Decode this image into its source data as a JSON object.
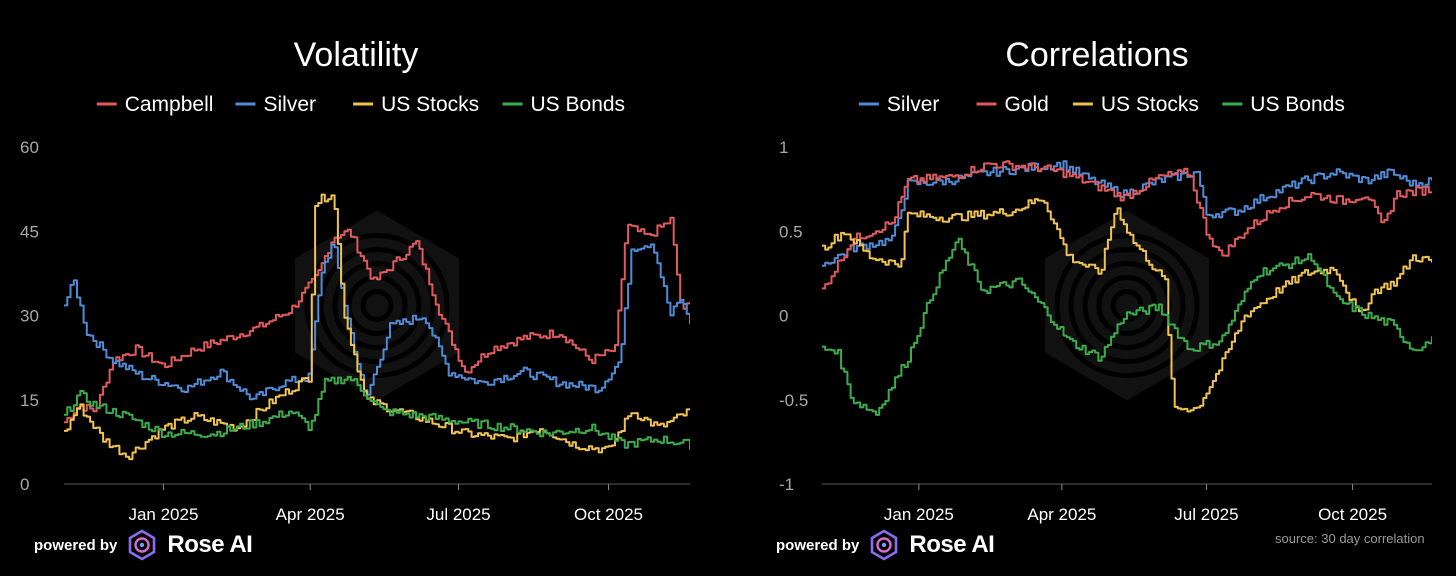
{
  "chart_data": [
    {
      "type": "line",
      "title": "Volatility",
      "xlabel": "",
      "ylabel": "",
      "x_start": "2024-11-01",
      "x_end": "2025-11-20",
      "ylim": [
        0,
        60
      ],
      "yticks": [
        0,
        15,
        30,
        45,
        60
      ],
      "ytick_labels": [
        "0",
        "15",
        "30",
        "45",
        "60"
      ],
      "xticks": [
        {
          "date": "2025-01-01",
          "label": "Jan 2025"
        },
        {
          "date": "2025-04-01",
          "label": "Apr 2025"
        },
        {
          "date": "2025-07-01",
          "label": "Jul 2025"
        },
        {
          "date": "2025-10-01",
          "label": "Oct 2025"
        }
      ],
      "legend_position": "top-center",
      "series": [
        {
          "name": "Campbell",
          "color": "#e05a5e",
          "points": [
            [
              "2024-11-01",
              11
            ],
            [
              "2024-11-10",
              14
            ],
            [
              "2024-11-20",
              13
            ],
            [
              "2024-12-01",
              22
            ],
            [
              "2024-12-15",
              24
            ],
            [
              "2025-01-01",
              21
            ],
            [
              "2025-01-20",
              24
            ],
            [
              "2025-02-10",
              26
            ],
            [
              "2025-03-01",
              28
            ],
            [
              "2025-03-20",
              31
            ],
            [
              "2025-04-05",
              37
            ],
            [
              "2025-04-15",
              44
            ],
            [
              "2025-04-25",
              45
            ],
            [
              "2025-05-10",
              36
            ],
            [
              "2025-05-25",
              40
            ],
            [
              "2025-06-05",
              43
            ],
            [
              "2025-06-20",
              30
            ],
            [
              "2025-07-05",
              20
            ],
            [
              "2025-07-20",
              24
            ],
            [
              "2025-08-10",
              26
            ],
            [
              "2025-09-01",
              27
            ],
            [
              "2025-09-20",
              22
            ],
            [
              "2025-10-05",
              24
            ],
            [
              "2025-10-12",
              46
            ],
            [
              "2025-10-25",
              44
            ],
            [
              "2025-11-08",
              47
            ],
            [
              "2025-11-15",
              30
            ],
            [
              "2025-11-20",
              33
            ]
          ]
        },
        {
          "name": "Silver",
          "color": "#4f8bd6",
          "points": [
            [
              "2024-11-01",
              32
            ],
            [
              "2024-11-07",
              36
            ],
            [
              "2024-11-15",
              27
            ],
            [
              "2024-12-01",
              22
            ],
            [
              "2024-12-20",
              19
            ],
            [
              "2025-01-15",
              17
            ],
            [
              "2025-02-05",
              20
            ],
            [
              "2025-02-25",
              15
            ],
            [
              "2025-03-15",
              18
            ],
            [
              "2025-03-31",
              19
            ],
            [
              "2025-04-08",
              38
            ],
            [
              "2025-04-15",
              43
            ],
            [
              "2025-04-22",
              32
            ],
            [
              "2025-05-05",
              15
            ],
            [
              "2025-05-20",
              28
            ],
            [
              "2025-06-10",
              30
            ],
            [
              "2025-06-25",
              20
            ],
            [
              "2025-07-15",
              18
            ],
            [
              "2025-08-10",
              20
            ],
            [
              "2025-09-01",
              18
            ],
            [
              "2025-09-25",
              17
            ],
            [
              "2025-10-08",
              22
            ],
            [
              "2025-10-15",
              42
            ],
            [
              "2025-10-28",
              43
            ],
            [
              "2025-11-08",
              30
            ],
            [
              "2025-11-14",
              33
            ],
            [
              "2025-11-20",
              29
            ]
          ]
        },
        {
          "name": "US Stocks",
          "color": "#f0c24f",
          "points": [
            [
              "2024-11-01",
              9
            ],
            [
              "2024-11-10",
              14
            ],
            [
              "2024-11-25",
              8
            ],
            [
              "2024-12-10",
              5
            ],
            [
              "2025-01-01",
              10
            ],
            [
              "2025-01-20",
              12
            ],
            [
              "2025-02-15",
              10
            ],
            [
              "2025-03-10",
              15
            ],
            [
              "2025-03-31",
              19
            ],
            [
              "2025-04-04",
              50
            ],
            [
              "2025-04-15",
              52
            ],
            [
              "2025-04-22",
              30
            ],
            [
              "2025-05-05",
              15
            ],
            [
              "2025-05-25",
              13
            ],
            [
              "2025-06-15",
              11
            ],
            [
              "2025-07-05",
              9
            ],
            [
              "2025-08-01",
              8
            ],
            [
              "2025-08-20",
              10
            ],
            [
              "2025-09-10",
              7
            ],
            [
              "2025-10-01",
              6
            ],
            [
              "2025-10-15",
              13
            ],
            [
              "2025-11-01",
              10
            ],
            [
              "2025-11-20",
              13
            ]
          ]
        },
        {
          "name": "US Bonds",
          "color": "#3cab4d",
          "points": [
            [
              "2024-11-01",
              12
            ],
            [
              "2024-11-10",
              16
            ],
            [
              "2024-11-20",
              14
            ],
            [
              "2024-12-10",
              12
            ],
            [
              "2025-01-01",
              9
            ],
            [
              "2025-02-01",
              9
            ],
            [
              "2025-03-01",
              11
            ],
            [
              "2025-03-20",
              13
            ],
            [
              "2025-04-01",
              10
            ],
            [
              "2025-04-10",
              18
            ],
            [
              "2025-04-25",
              19
            ],
            [
              "2025-05-15",
              13
            ],
            [
              "2025-06-10",
              12
            ],
            [
              "2025-07-05",
              11
            ],
            [
              "2025-08-01",
              10
            ],
            [
              "2025-08-25",
              9
            ],
            [
              "2025-09-20",
              10
            ],
            [
              "2025-10-10",
              7
            ],
            [
              "2025-11-01",
              8
            ],
            [
              "2025-11-20",
              7
            ]
          ]
        }
      ]
    },
    {
      "type": "line",
      "title": "Correlations",
      "xlabel": "",
      "ylabel": "",
      "x_start": "2024-11-01",
      "x_end": "2025-11-20",
      "ylim": [
        -1,
        1
      ],
      "yticks": [
        -1,
        -0.5,
        0,
        0.5,
        1
      ],
      "ytick_labels": [
        "-1",
        "-0.5",
        "0",
        "0.5",
        "1"
      ],
      "xticks": [
        {
          "date": "2025-01-01",
          "label": "Jan 2025"
        },
        {
          "date": "2025-04-01",
          "label": "Apr 2025"
        },
        {
          "date": "2025-07-01",
          "label": "Jul 2025"
        },
        {
          "date": "2025-10-01",
          "label": "Oct 2025"
        }
      ],
      "legend_position": "top-center",
      "series": [
        {
          "name": "Silver",
          "color": "#4f8bd6",
          "points": [
            [
              "2024-11-01",
              0.3
            ],
            [
              "2024-11-20",
              0.4
            ],
            [
              "2024-12-15",
              0.45
            ],
            [
              "2024-12-25",
              0.78
            ],
            [
              "2025-01-20",
              0.8
            ],
            [
              "2025-02-15",
              0.85
            ],
            [
              "2025-03-15",
              0.88
            ],
            [
              "2025-04-01",
              0.9
            ],
            [
              "2025-04-20",
              0.8
            ],
            [
              "2025-05-10",
              0.72
            ],
            [
              "2025-06-01",
              0.8
            ],
            [
              "2025-06-25",
              0.85
            ],
            [
              "2025-07-01",
              0.6
            ],
            [
              "2025-07-20",
              0.62
            ],
            [
              "2025-08-10",
              0.72
            ],
            [
              "2025-09-01",
              0.8
            ],
            [
              "2025-09-20",
              0.85
            ],
            [
              "2025-10-10",
              0.8
            ],
            [
              "2025-10-25",
              0.85
            ],
            [
              "2025-11-08",
              0.78
            ],
            [
              "2025-11-20",
              0.8
            ]
          ]
        },
        {
          "name": "Gold",
          "color": "#e05a5e",
          "points": [
            [
              "2024-11-01",
              0.15
            ],
            [
              "2024-11-20",
              0.45
            ],
            [
              "2024-12-15",
              0.55
            ],
            [
              "2024-12-25",
              0.8
            ],
            [
              "2025-01-20",
              0.82
            ],
            [
              "2025-02-15",
              0.9
            ],
            [
              "2025-03-15",
              0.88
            ],
            [
              "2025-04-01",
              0.85
            ],
            [
              "2025-04-20",
              0.78
            ],
            [
              "2025-05-10",
              0.7
            ],
            [
              "2025-06-01",
              0.82
            ],
            [
              "2025-06-20",
              0.85
            ],
            [
              "2025-07-01",
              0.5
            ],
            [
              "2025-07-10",
              0.35
            ],
            [
              "2025-07-25",
              0.5
            ],
            [
              "2025-08-15",
              0.65
            ],
            [
              "2025-09-05",
              0.72
            ],
            [
              "2025-09-25",
              0.68
            ],
            [
              "2025-10-10",
              0.72
            ],
            [
              "2025-10-20",
              0.52
            ],
            [
              "2025-10-28",
              0.72
            ],
            [
              "2025-11-20",
              0.75
            ]
          ]
        },
        {
          "name": "US Stocks",
          "color": "#f0c24f",
          "points": [
            [
              "2024-11-01",
              0.4
            ],
            [
              "2024-11-15",
              0.5
            ],
            [
              "2024-12-01",
              0.35
            ],
            [
              "2024-12-20",
              0.3
            ],
            [
              "2024-12-25",
              0.6
            ],
            [
              "2025-01-20",
              0.58
            ],
            [
              "2025-02-10",
              0.6
            ],
            [
              "2025-03-01",
              0.62
            ],
            [
              "2025-03-20",
              0.7
            ],
            [
              "2025-04-05",
              0.35
            ],
            [
              "2025-04-25",
              0.25
            ],
            [
              "2025-05-05",
              0.65
            ],
            [
              "2025-05-15",
              0.45
            ],
            [
              "2025-06-05",
              0.2
            ],
            [
              "2025-06-10",
              -0.55
            ],
            [
              "2025-06-25",
              -0.55
            ],
            [
              "2025-07-10",
              -0.3
            ],
            [
              "2025-07-25",
              0.0
            ],
            [
              "2025-08-15",
              0.15
            ],
            [
              "2025-09-01",
              0.25
            ],
            [
              "2025-09-20",
              0.28
            ],
            [
              "2025-10-05",
              0.0
            ],
            [
              "2025-10-15",
              0.15
            ],
            [
              "2025-10-28",
              0.2
            ],
            [
              "2025-11-08",
              0.35
            ],
            [
              "2025-11-20",
              0.32
            ]
          ]
        },
        {
          "name": "US Bonds",
          "color": "#3cab4d",
          "points": [
            [
              "2024-11-01",
              -0.2
            ],
            [
              "2024-11-10",
              -0.2
            ],
            [
              "2024-11-20",
              -0.5
            ],
            [
              "2024-12-05",
              -0.58
            ],
            [
              "2024-12-25",
              -0.25
            ],
            [
              "2025-01-10",
              0.15
            ],
            [
              "2025-01-25",
              0.45
            ],
            [
              "2025-02-10",
              0.15
            ],
            [
              "2025-03-05",
              0.2
            ],
            [
              "2025-03-20",
              0.05
            ],
            [
              "2025-04-05",
              -0.15
            ],
            [
              "2025-04-25",
              -0.25
            ],
            [
              "2025-05-10",
              0.0
            ],
            [
              "2025-06-01",
              0.05
            ],
            [
              "2025-06-20",
              -0.2
            ],
            [
              "2025-07-10",
              -0.15
            ],
            [
              "2025-08-01",
              0.25
            ],
            [
              "2025-08-20",
              0.3
            ],
            [
              "2025-09-05",
              0.35
            ],
            [
              "2025-09-20",
              0.1
            ],
            [
              "2025-10-10",
              0.0
            ],
            [
              "2025-10-25",
              -0.05
            ],
            [
              "2025-11-08",
              -0.2
            ],
            [
              "2025-11-20",
              -0.15
            ]
          ]
        }
      ]
    }
  ],
  "footer": {
    "powered_by": "powered by",
    "brand": "Rose AI",
    "source_note": "source: 30 day correlation"
  }
}
